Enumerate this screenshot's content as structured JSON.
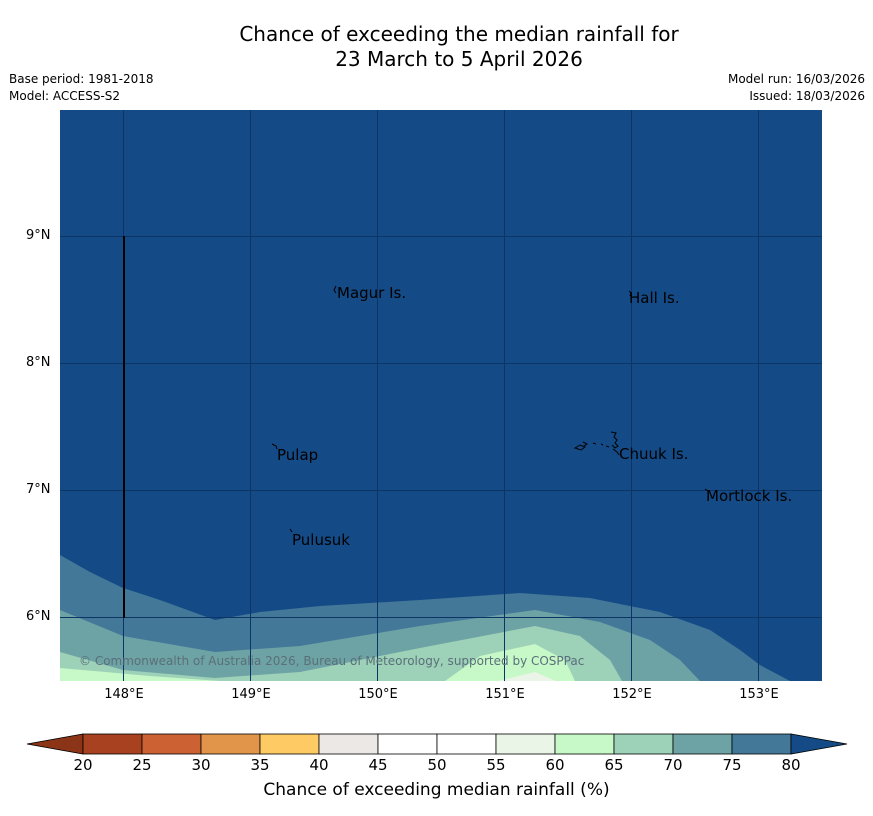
{
  "header": {
    "title_line1": "Chance of exceeding the median rainfall for",
    "title_line2": "23 March to 5 April 2026",
    "base_period": "Base period: 1981-2018",
    "model": "Model: ACCESS-S2",
    "model_run": "Model run: 16/03/2026",
    "issued": "Issued: 18/03/2026"
  },
  "map": {
    "background_color": "#144a85",
    "copyright": "© Commonwealth of Australia 2026, Bureau of Meteorology, supported by COSPPac",
    "lat_labels": [
      "9°N",
      "8°N",
      "7°N",
      "6°N"
    ],
    "lon_labels": [
      "148°E",
      "149°E",
      "150°E",
      "151°E",
      "152°E",
      "153°E"
    ],
    "islands": {
      "magur": "Magur Is.",
      "hall": "Hall Is.",
      "pulap": "Pulap",
      "chuuk": "Chuuk Is.",
      "mortlock": "Mortlock Is.",
      "pulusuk": "Pulusuk"
    }
  },
  "colorbar": {
    "title": "Chance of exceeding median rainfall (%)",
    "ticks": [
      "20",
      "25",
      "30",
      "35",
      "40",
      "45",
      "50",
      "55",
      "60",
      "65",
      "70",
      "75",
      "80"
    ],
    "colors": [
      "#a8411f",
      "#cc6233",
      "#e0954b",
      "#fdca63",
      "#ebe8e5",
      "#ffffff",
      "#ffffff",
      "#eaf5e7",
      "#c7f8c7",
      "#9dd1b8",
      "#6da3a4",
      "#437899"
    ],
    "low_extend_color": "#8b3418",
    "high_extend_color": "#144a85"
  }
}
